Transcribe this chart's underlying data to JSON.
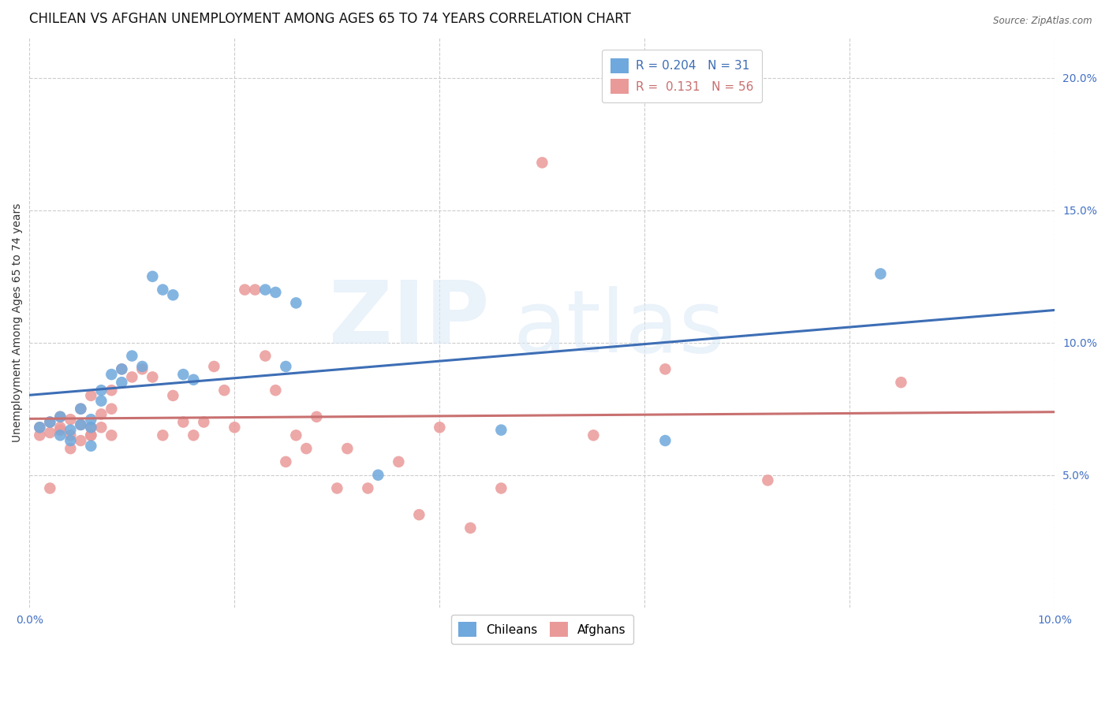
{
  "title": "CHILEAN VS AFGHAN UNEMPLOYMENT AMONG AGES 65 TO 74 YEARS CORRELATION CHART",
  "source": "Source: ZipAtlas.com",
  "ylabel": "Unemployment Among Ages 65 to 74 years",
  "xlim": [
    0.0,
    0.1
  ],
  "ylim": [
    0.0,
    0.215
  ],
  "xticks": [
    0.0,
    0.1
  ],
  "xticklabels": [
    "0.0%",
    "10.0%"
  ],
  "yticks_right": [
    0.05,
    0.1,
    0.15,
    0.2
  ],
  "yticklabels_right": [
    "5.0%",
    "10.0%",
    "15.0%",
    "20.0%"
  ],
  "grid_xticks": [
    0.0,
    0.02,
    0.04,
    0.06,
    0.08,
    0.1
  ],
  "grid_yticks": [
    0.05,
    0.1,
    0.15,
    0.2
  ],
  "chilean_color": "#6fa8dc",
  "afghan_color": "#ea9999",
  "chilean_line_color": "#3d6eb5",
  "afghan_line_color": "#c97070",
  "chilean_R": 0.204,
  "chilean_N": 31,
  "afghan_R": 0.131,
  "afghan_N": 56,
  "background_color": "#ffffff",
  "grid_color": "#cccccc",
  "chileans_x": [
    0.001,
    0.002,
    0.003,
    0.003,
    0.004,
    0.004,
    0.005,
    0.005,
    0.006,
    0.006,
    0.006,
    0.007,
    0.007,
    0.008,
    0.009,
    0.009,
    0.01,
    0.011,
    0.012,
    0.013,
    0.014,
    0.015,
    0.016,
    0.023,
    0.024,
    0.025,
    0.026,
    0.034,
    0.046,
    0.062,
    0.083
  ],
  "chileans_y": [
    0.068,
    0.07,
    0.072,
    0.065,
    0.067,
    0.063,
    0.069,
    0.075,
    0.068,
    0.061,
    0.071,
    0.082,
    0.078,
    0.088,
    0.09,
    0.085,
    0.095,
    0.091,
    0.125,
    0.12,
    0.118,
    0.088,
    0.086,
    0.12,
    0.119,
    0.091,
    0.115,
    0.05,
    0.067,
    0.063,
    0.126
  ],
  "afghans_x": [
    0.001,
    0.001,
    0.002,
    0.002,
    0.002,
    0.003,
    0.003,
    0.003,
    0.004,
    0.004,
    0.004,
    0.005,
    0.005,
    0.005,
    0.006,
    0.006,
    0.006,
    0.006,
    0.007,
    0.007,
    0.008,
    0.008,
    0.008,
    0.009,
    0.01,
    0.011,
    0.012,
    0.013,
    0.014,
    0.015,
    0.016,
    0.017,
    0.018,
    0.019,
    0.02,
    0.021,
    0.022,
    0.023,
    0.024,
    0.025,
    0.026,
    0.027,
    0.028,
    0.03,
    0.031,
    0.033,
    0.036,
    0.038,
    0.04,
    0.043,
    0.046,
    0.05,
    0.055,
    0.062,
    0.072,
    0.085
  ],
  "afghans_y": [
    0.065,
    0.068,
    0.066,
    0.07,
    0.045,
    0.067,
    0.068,
    0.072,
    0.065,
    0.071,
    0.06,
    0.069,
    0.063,
    0.075,
    0.065,
    0.068,
    0.08,
    0.065,
    0.068,
    0.073,
    0.082,
    0.075,
    0.065,
    0.09,
    0.087,
    0.09,
    0.087,
    0.065,
    0.08,
    0.07,
    0.065,
    0.07,
    0.091,
    0.082,
    0.068,
    0.12,
    0.12,
    0.095,
    0.082,
    0.055,
    0.065,
    0.06,
    0.072,
    0.045,
    0.06,
    0.045,
    0.055,
    0.035,
    0.068,
    0.03,
    0.045,
    0.168,
    0.065,
    0.09,
    0.048,
    0.085
  ],
  "title_fontsize": 12,
  "axis_fontsize": 10,
  "legend_fontsize": 11,
  "marker_size": 110
}
